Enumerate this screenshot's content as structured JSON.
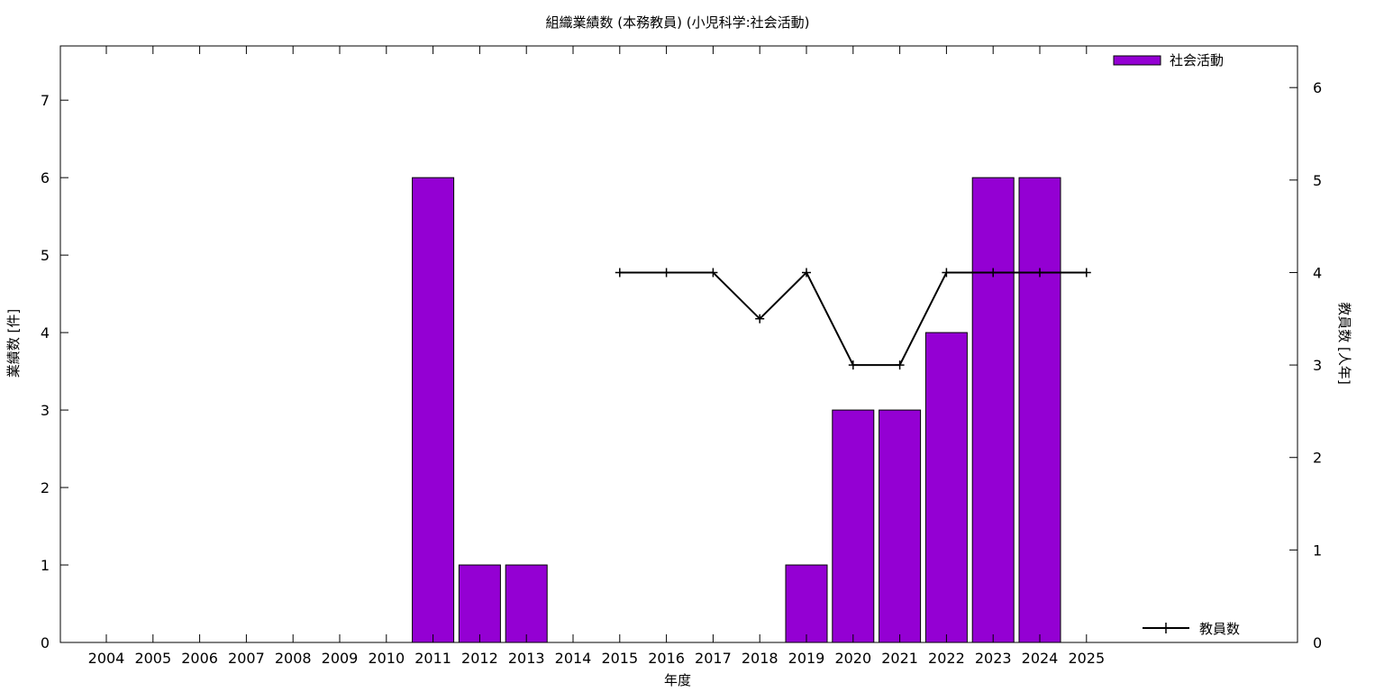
{
  "chart_data": {
    "type": "bar",
    "title": "組織業績数 (本務教員) (小児科学:社会活動)",
    "xlabel": "年度",
    "ylabel": "業績数 [件]",
    "y2label": "教員数 [人年]",
    "categories": [
      "2004",
      "2005",
      "2006",
      "2007",
      "2008",
      "2009",
      "2010",
      "2011",
      "2012",
      "2013",
      "2014",
      "2015",
      "2016",
      "2017",
      "2018",
      "2019",
      "2020",
      "2021",
      "2022",
      "2023",
      "2024",
      "2025"
    ],
    "ylim": [
      0,
      7.7
    ],
    "y2lim": [
      0,
      6.45
    ],
    "yticks": [
      0,
      1,
      2,
      3,
      4,
      5,
      6,
      7
    ],
    "y2ticks": [
      0,
      1,
      2,
      3,
      4,
      5,
      6
    ],
    "grid": false,
    "legend_position": "top-right / bottom-right",
    "series": [
      {
        "name": "社会活動",
        "type": "bar",
        "axis": "left",
        "color": "#9400d3",
        "values": [
          null,
          null,
          null,
          null,
          null,
          null,
          null,
          6,
          1,
          1,
          null,
          null,
          null,
          null,
          null,
          1,
          3,
          3,
          4,
          6,
          6,
          null
        ]
      },
      {
        "name": "教員数",
        "type": "line",
        "axis": "right",
        "color": "#000000",
        "values": [
          null,
          null,
          null,
          null,
          null,
          null,
          null,
          null,
          null,
          null,
          null,
          4,
          4,
          4,
          3.5,
          4,
          3,
          3,
          4,
          4,
          4,
          4
        ]
      }
    ]
  }
}
